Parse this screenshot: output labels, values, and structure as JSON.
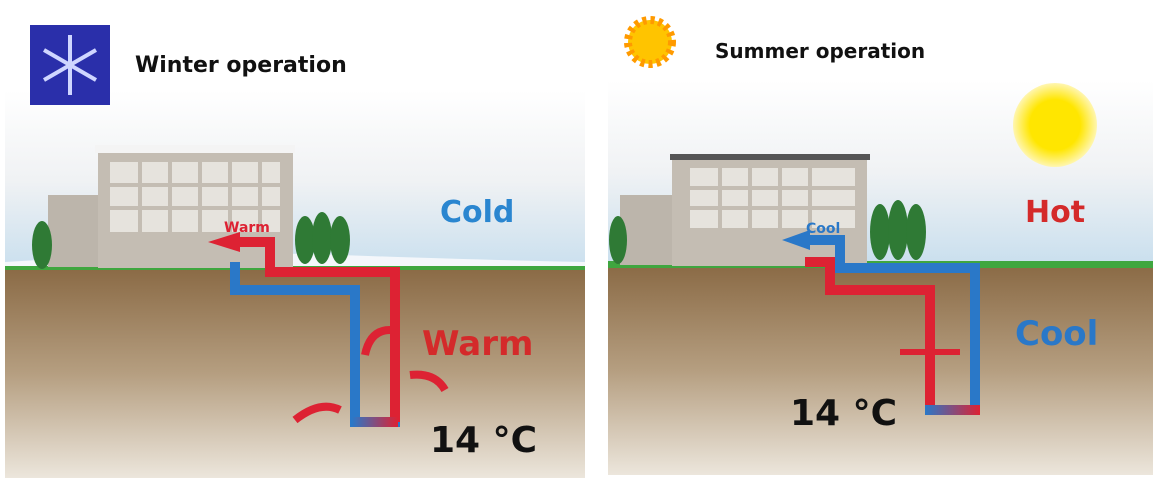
{
  "panels": [
    {
      "title": "Winter operation",
      "air_label": "Cold",
      "arrow_label": "Warm",
      "ground_label": "Warm",
      "temperature": "14 °C"
    },
    {
      "title": "Summer operation",
      "air_label": "Hot",
      "arrow_label": "Cool",
      "ground_label": "Cool",
      "temperature": "14 °C"
    }
  ]
}
